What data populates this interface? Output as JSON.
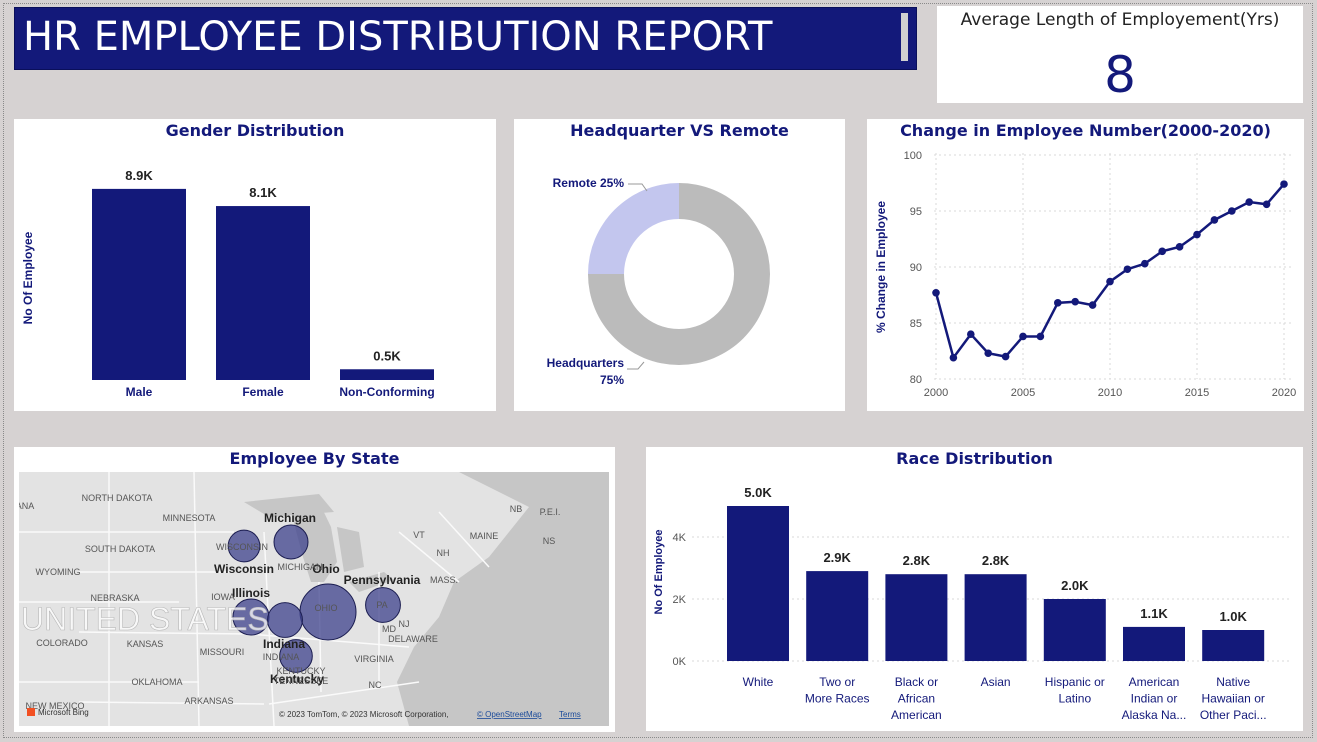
{
  "report": {
    "title": "HR EMPLOYEE DISTRIBUTION  REPORT"
  },
  "kpi": {
    "label": "Average Length of Employement(Yrs)",
    "value": "8"
  },
  "colors": {
    "navy": "#13197a",
    "lavender": "#c3c6ee",
    "grey": "#bbbbbb"
  },
  "gender": {
    "title": "Gender Distribution",
    "chart_data": {
      "type": "bar",
      "categories": [
        "Male",
        "Female",
        "Non-Conforming"
      ],
      "values": [
        8.9,
        8.1,
        0.5
      ],
      "data_labels": [
        "8.9K",
        "8.1K",
        "0.5K"
      ],
      "ylabel": "No Of Employee",
      "ylim": [
        0,
        9.5
      ]
    }
  },
  "location": {
    "title": "Headquarter VS Remote",
    "chart_data": {
      "type": "pie",
      "donut": true,
      "labels": [
        "Headquarters",
        "Remote"
      ],
      "values": [
        75,
        25
      ],
      "label_text": [
        "Headquarters",
        "75%",
        "Remote 25%"
      ]
    }
  },
  "trend": {
    "title": "Change in Employee Number(2000-2020)",
    "chart_data": {
      "type": "line",
      "x": [
        2000,
        2001,
        2002,
        2003,
        2004,
        2005,
        2006,
        2007,
        2008,
        2009,
        2010,
        2011,
        2012,
        2013,
        2014,
        2015,
        2016,
        2017,
        2018,
        2019,
        2020
      ],
      "y": [
        87.7,
        81.9,
        84.0,
        82.3,
        82.0,
        83.8,
        83.8,
        86.8,
        86.9,
        86.6,
        88.7,
        89.8,
        90.3,
        91.4,
        91.8,
        92.9,
        94.2,
        95.0,
        95.8,
        95.6,
        97.4
      ],
      "ylabel": "% Change in Employee",
      "ylim": [
        80,
        100
      ],
      "yticks": [
        "80",
        "85",
        "90",
        "95",
        "100"
      ],
      "xticks": [
        "2000",
        "2005",
        "2010",
        "2015",
        "2020"
      ],
      "grid": true
    }
  },
  "state_map": {
    "title": "Employee By State",
    "labels": [
      {
        "text": "Michigan",
        "bold": true
      },
      {
        "text": "Ohio",
        "bold": true
      },
      {
        "text": "Wisconsin",
        "bold": true
      },
      {
        "text": "Pennsylvania",
        "bold": true
      },
      {
        "text": "Illinois",
        "bold": true
      },
      {
        "text": "Indiana",
        "bold": true
      },
      {
        "text": "Kentucky",
        "bold": true
      },
      {
        "text": "NORTH DAKOTA"
      },
      {
        "text": "MINNESOTA"
      },
      {
        "text": "SOUTH DAKOTA"
      },
      {
        "text": "WYOMING"
      },
      {
        "text": "NEBRASKA"
      },
      {
        "text": "IOWA"
      },
      {
        "text": "UNITED STATES"
      },
      {
        "text": "COLORADO"
      },
      {
        "text": "KANSAS"
      },
      {
        "text": "MISSOURI"
      },
      {
        "text": "OKLAHOMA"
      },
      {
        "text": "ARKANSAS"
      },
      {
        "text": "NEW MEXICO"
      },
      {
        "text": "TENNESSEE"
      },
      {
        "text": "VIRGINIA"
      },
      {
        "text": "NC"
      },
      {
        "text": "MAINE"
      },
      {
        "text": "NB"
      },
      {
        "text": "P.E.I."
      },
      {
        "text": "NS"
      },
      {
        "text": "VT"
      },
      {
        "text": "NH"
      },
      {
        "text": "MASS."
      },
      {
        "text": "NJ"
      },
      {
        "text": "MD"
      },
      {
        "text": "DELAWARE"
      },
      {
        "text": "INDIANA"
      },
      {
        "text": "KENTUCKY"
      },
      {
        "text": "MICHIGAN"
      },
      {
        "text": "WISCONSIN"
      },
      {
        "text": "OHIO"
      },
      {
        "text": "PA"
      },
      {
        "text": "ANA"
      }
    ],
    "bubbles": [
      {
        "state": "Ohio",
        "size": 1.0
      },
      {
        "state": "Michigan",
        "size": 0.25
      },
      {
        "state": "Wisconsin",
        "size": 0.2
      },
      {
        "state": "Pennsylvania",
        "size": 0.27
      },
      {
        "state": "Illinois",
        "size": 0.3
      },
      {
        "state": "Indiana",
        "size": 0.27
      },
      {
        "state": "Kentucky",
        "size": 0.22
      }
    ],
    "attribution": "© 2023 TomTom, © 2023 Microsoft Corporation,",
    "osm_link": "© OpenStreetMap",
    "terms_link": "Terms",
    "bing_label": "Microsoft Bing"
  },
  "race": {
    "title": "Race Distribution",
    "chart_data": {
      "type": "bar",
      "categories": [
        [
          "White"
        ],
        [
          "Two or",
          "More Races"
        ],
        [
          "Black or",
          "African",
          "American"
        ],
        [
          "Asian"
        ],
        [
          "Hispanic or",
          "Latino"
        ],
        [
          "American",
          "Indian or",
          "Alaska Na..."
        ],
        [
          "Native",
          "Hawaiian or",
          "Other Paci..."
        ]
      ],
      "values": [
        5.0,
        2.9,
        2.8,
        2.8,
        2.0,
        1.1,
        1.0
      ],
      "data_labels": [
        "5.0K",
        "2.9K",
        "2.8K",
        "2.8K",
        "2.0K",
        "1.1K",
        "1.0K"
      ],
      "ylabel": "No Of Employee",
      "yticks": [
        "0K",
        "2K",
        "4K"
      ],
      "ylim": [
        0,
        5.0
      ],
      "grid": true
    }
  }
}
